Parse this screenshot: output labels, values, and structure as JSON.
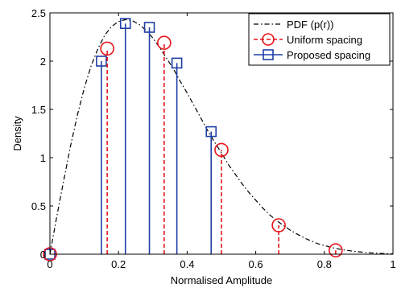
{
  "chart_data": {
    "type": "line",
    "xlabel": "Normalised Amplitude",
    "ylabel": "Density",
    "xlim": [
      0,
      1
    ],
    "ylim": [
      0,
      2.5
    ],
    "xticks": [
      0,
      0.2,
      0.4,
      0.6,
      0.8,
      1
    ],
    "xtick_labels": [
      "0",
      "0.2",
      "0.4",
      "0.6",
      "0.8",
      "1"
    ],
    "yticks": [
      0,
      0.5,
      1,
      1.5,
      2,
      2.5
    ],
    "ytick_labels": [
      "0",
      "0.5",
      "1",
      "1.5",
      "2",
      "2.5"
    ],
    "grid": false,
    "legend_position": "top-right",
    "series": [
      {
        "name": "PDF (p(r))",
        "style": "dash-dot",
        "color": "#000000",
        "x": [
          0,
          0.02,
          0.04,
          0.06,
          0.08,
          0.1,
          0.12,
          0.14,
          0.16,
          0.18,
          0.2,
          0.22,
          0.24,
          0.26,
          0.28,
          0.3,
          0.32,
          0.34,
          0.36,
          0.38,
          0.4,
          0.42,
          0.44,
          0.46,
          0.48,
          0.5,
          0.52,
          0.54,
          0.56,
          0.58,
          0.6,
          0.62,
          0.64,
          0.66,
          0.68,
          0.7,
          0.72,
          0.74,
          0.76,
          0.78,
          0.8,
          0.82,
          0.84,
          0.86,
          0.88,
          0.9,
          0.92,
          0.94,
          0.96,
          0.98,
          1.0
        ],
        "y": [
          0,
          0.39,
          0.76,
          1.12,
          1.44,
          1.72,
          1.95,
          2.13,
          2.27,
          2.36,
          2.41,
          2.43,
          2.42,
          2.38,
          2.32,
          2.24,
          2.14,
          2.03,
          1.92,
          1.79,
          1.67,
          1.54,
          1.41,
          1.28,
          1.16,
          1.05,
          0.93,
          0.83,
          0.73,
          0.64,
          0.56,
          0.48,
          0.41,
          0.35,
          0.3,
          0.25,
          0.21,
          0.17,
          0.14,
          0.11,
          0.09,
          0.07,
          0.055,
          0.043,
          0.033,
          0.025,
          0.018,
          0.013,
          0.009,
          0.006,
          0.004
        ]
      },
      {
        "name": "Uniform spacing",
        "style": "dashed-stem",
        "marker": "circle",
        "color": "#e8141b",
        "x": [
          0,
          0.167,
          0.333,
          0.5,
          0.667,
          0.833
        ],
        "y": [
          0,
          2.13,
          2.19,
          1.08,
          0.3,
          0.04
        ]
      },
      {
        "name": "Proposed spacing",
        "style": "solid-stem",
        "marker": "square",
        "color": "#1f3fa6",
        "x": [
          0,
          0.15,
          0.22,
          0.29,
          0.37,
          0.47
        ],
        "y": [
          0,
          2.0,
          2.39,
          2.35,
          1.98,
          1.27
        ]
      }
    ]
  }
}
